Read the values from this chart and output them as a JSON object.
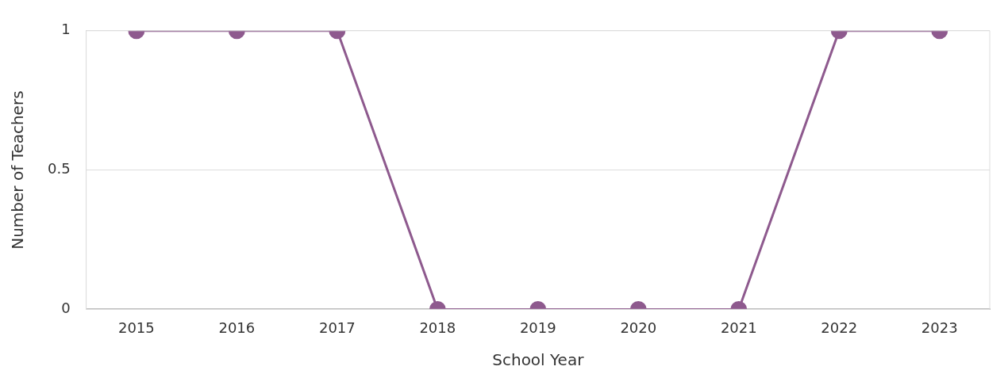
{
  "chart_data": {
    "type": "line",
    "xlabel": "School Year",
    "ylabel": "Number of Teachers",
    "categories": [
      "2015",
      "2016",
      "2017",
      "2018",
      "2019",
      "2020",
      "2021",
      "2022",
      "2023"
    ],
    "series": [
      {
        "color": "#8e5a8e",
        "values": [
          1,
          1,
          1,
          0,
          0,
          0,
          0,
          1,
          1
        ]
      }
    ],
    "ylim": [
      0,
      1
    ],
    "yticks": [
      0,
      0.5,
      1
    ],
    "grid": "y",
    "legend": false,
    "marker": "circle",
    "line_style": "solid"
  }
}
